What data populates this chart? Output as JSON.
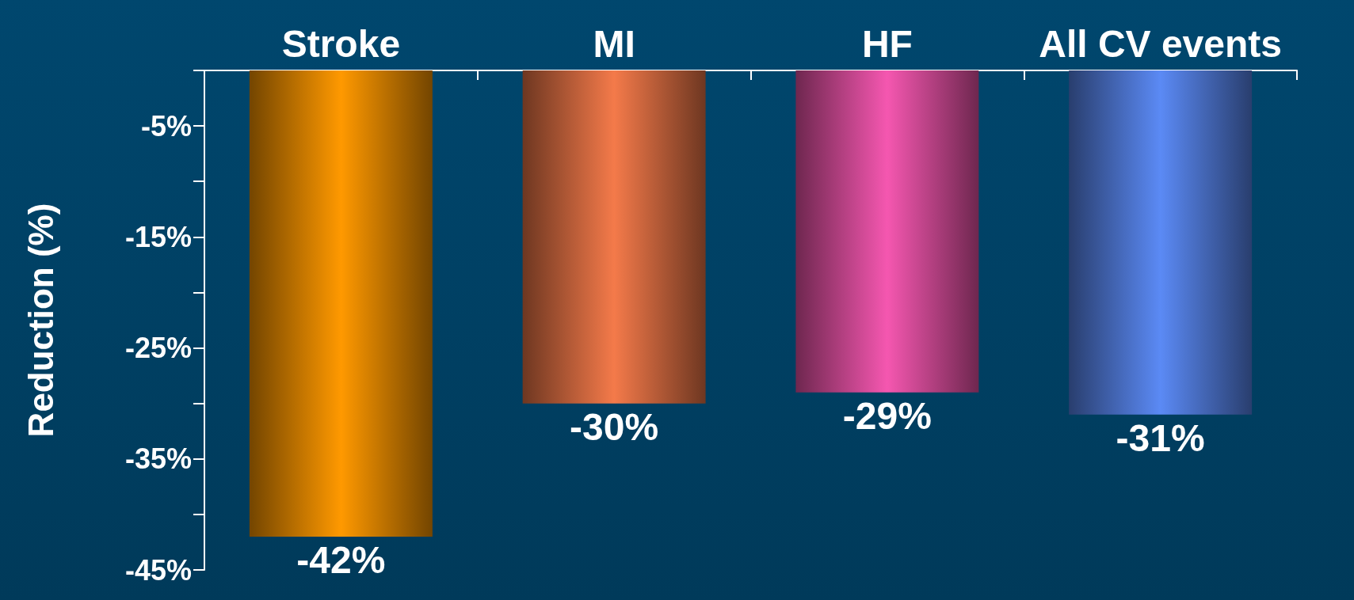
{
  "chart_data": {
    "type": "bar",
    "ylabel": "Reduction (%)",
    "categories": [
      "Stroke",
      "MI",
      "HF",
      "All CV events"
    ],
    "values": [
      -42,
      -30,
      -29,
      -31
    ],
    "colors": [
      "#ff9900",
      "#f47a4a",
      "#f557b0",
      "#5b8af5"
    ],
    "value_labels": [
      "-42%",
      "-30%",
      "-29%",
      "-31%"
    ],
    "ylim": [
      -45,
      0
    ],
    "yticks": [
      {
        "value": 0,
        "label": null
      },
      {
        "value": -5,
        "label": "-5%"
      },
      {
        "value": -10,
        "label": null
      },
      {
        "value": -15,
        "label": "-15%"
      },
      {
        "value": -20,
        "label": null
      },
      {
        "value": -25,
        "label": "-25%"
      },
      {
        "value": -30,
        "label": null
      },
      {
        "value": -35,
        "label": "-35%"
      },
      {
        "value": -40,
        "label": null
      },
      {
        "value": -45,
        "label": "-45%"
      }
    ],
    "grid": false
  }
}
